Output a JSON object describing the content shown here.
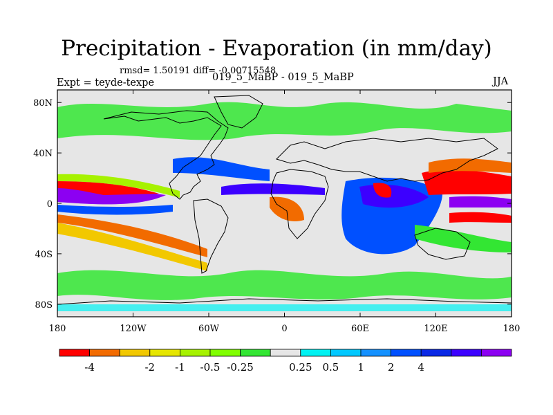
{
  "chart_data": {
    "type": "heatmap",
    "title": "Precipitation - Evaporation (in mm/day)",
    "stats_text": "rmsd= 1.50191 diff= -0.00715548",
    "experiment_label": "Expt = teyde-texpe",
    "comparison_label": "019_5_MaBP - 019_5_MaBP",
    "season_label": "JJA",
    "map": {
      "lon_range": [
        -180,
        180
      ],
      "lat_range": [
        -90,
        90
      ],
      "land_outline": true
    },
    "x_ticks": [
      {
        "value": -180,
        "label": "180"
      },
      {
        "value": -120,
        "label": "120W"
      },
      {
        "value": -60,
        "label": "60W"
      },
      {
        "value": 0,
        "label": "0"
      },
      {
        "value": 60,
        "label": "60E"
      },
      {
        "value": 120,
        "label": "120E"
      },
      {
        "value": 180,
        "label": "180"
      }
    ],
    "y_ticks": [
      {
        "value": 80,
        "label": "80N"
      },
      {
        "value": 40,
        "label": "40N"
      },
      {
        "value": 0,
        "label": "0"
      },
      {
        "value": -40,
        "label": "40S"
      },
      {
        "value": -80,
        "label": "80S"
      }
    ],
    "colorbar": {
      "colors": [
        "#ff0000",
        "#f26b00",
        "#f2c800",
        "#e6e600",
        "#a6f200",
        "#80ff00",
        "#33e633",
        "#e6e6e6",
        "#00f2f2",
        "#00c8ff",
        "#1491ff",
        "#0050ff",
        "#0a28e6",
        "#3c00ff",
        "#8c00f2"
      ],
      "labels": [
        "-4",
        "-2",
        "-1",
        "-0.5",
        "-0.25",
        "0.25",
        "0.5",
        "1",
        "2",
        "4"
      ],
      "label_boundaries": [
        1,
        3,
        4,
        5,
        6,
        8,
        9,
        10,
        11,
        12
      ]
    }
  }
}
